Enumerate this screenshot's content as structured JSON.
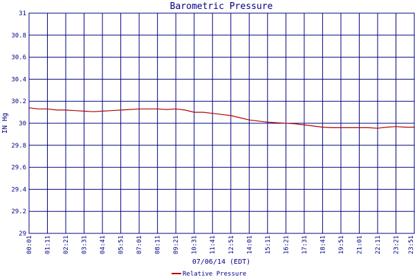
{
  "chart_data": {
    "type": "line",
    "title": "Barometric Pressure",
    "xlabel": "07/06/14 (EDT)",
    "ylabel": "IN Hg",
    "ylim": [
      29,
      31
    ],
    "yticks": [
      "29",
      "29.2",
      "29.4",
      "29.6",
      "29.8",
      "30",
      "30.2",
      "30.4",
      "30.6",
      "30.8",
      "31"
    ],
    "xticks": [
      "00:01",
      "01:11",
      "02:21",
      "03:31",
      "04:41",
      "05:51",
      "07:01",
      "08:11",
      "09:21",
      "10:31",
      "11:41",
      "12:51",
      "14:01",
      "15:11",
      "16:21",
      "17:31",
      "18:41",
      "19:51",
      "21:01",
      "22:11",
      "23:21",
      "23:51"
    ],
    "grid": true,
    "legend_position": "bottom-center",
    "colors": {
      "line": "#b00000",
      "grid": "#000080",
      "text": "#000080"
    },
    "series": [
      {
        "name": "Relative Pressure",
        "x": [
          0,
          0.5,
          1,
          1.5,
          2,
          2.5,
          3,
          3.5,
          4,
          4.5,
          5,
          5.5,
          6,
          6.5,
          7,
          7.5,
          8,
          8.5,
          9,
          9.5,
          10,
          10.5,
          11,
          11.5,
          12,
          12.5,
          13,
          13.5,
          14,
          14.5,
          15,
          15.5,
          16,
          16.5,
          17,
          17.5,
          18,
          18.5,
          19,
          19.5,
          20,
          20.5,
          21
        ],
        "values": [
          30.14,
          30.13,
          30.13,
          30.12,
          30.12,
          30.115,
          30.11,
          30.105,
          30.11,
          30.115,
          30.12,
          30.125,
          30.13,
          30.13,
          30.13,
          30.125,
          30.13,
          30.12,
          30.1,
          30.1,
          30.09,
          30.08,
          30.07,
          30.05,
          30.03,
          30.02,
          30.01,
          30.005,
          30.0,
          29.995,
          29.985,
          29.975,
          29.965,
          29.96,
          29.96,
          29.96,
          29.96,
          29.96,
          29.955,
          29.965,
          29.97,
          29.965,
          29.965
        ]
      }
    ]
  }
}
